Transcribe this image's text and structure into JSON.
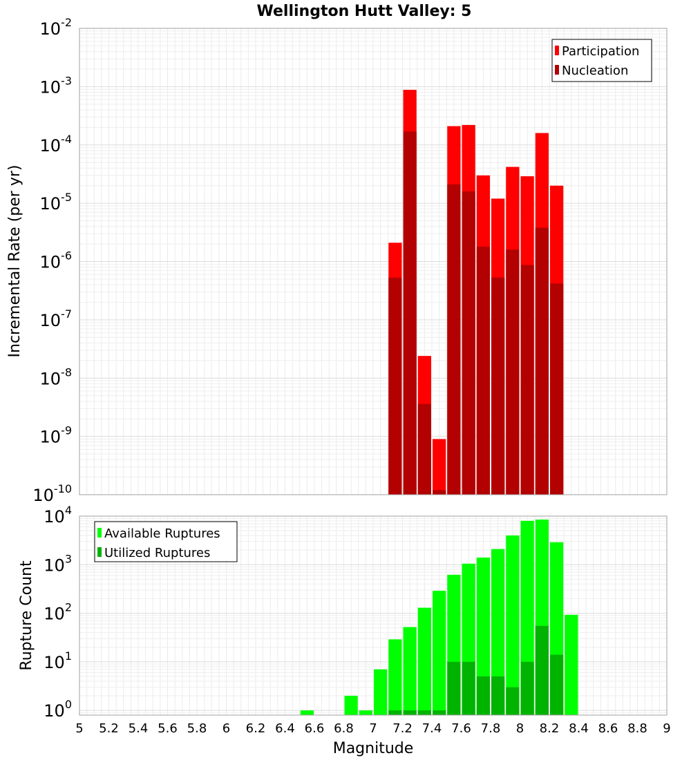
{
  "chart_data": {
    "title": "Wellington Hutt Valley: 5",
    "xlabel": "Magnitude",
    "x_ticks": [
      "5",
      "5.2",
      "5.4",
      "5.6",
      "5.8",
      "6",
      "6.2",
      "6.4",
      "6.6",
      "6.8",
      "7",
      "7.2",
      "7.4",
      "7.6",
      "7.8",
      "8",
      "8.2",
      "8.4",
      "8.6",
      "8.8",
      "9"
    ],
    "xlim": [
      5,
      9
    ],
    "panels": [
      {
        "type": "bar",
        "ylabel": "Incremental Rate (per yr)",
        "yscale": "log",
        "ylim": [
          1e-10,
          0.01
        ],
        "y_tick_exponents": [
          "-10",
          "-9",
          "-8",
          "-7",
          "-6",
          "-5",
          "-4",
          "-3",
          "-2"
        ],
        "legend_position": "top-right",
        "grid": true,
        "series": [
          {
            "name": "Participation",
            "color": "#ff0000",
            "x": [
              7.15,
              7.25,
              7.35,
              7.45,
              7.55,
              7.65,
              7.75,
              7.85,
              7.95,
              8.05,
              8.15,
              8.25
            ],
            "values": [
              2.1e-06,
              0.00088,
              2.4e-08,
              9e-10,
              0.00021,
              0.00022,
              3e-05,
              1.2e-05,
              4.2e-05,
              2.9e-05,
              0.00016,
              2e-05
            ]
          },
          {
            "name": "Nucleation",
            "color": "#b30000",
            "x": [
              7.15,
              7.25,
              7.35,
              7.45,
              7.55,
              7.65,
              7.75,
              7.85,
              7.95,
              8.05,
              8.15,
              8.25
            ],
            "values": [
              5.3e-07,
              0.00017,
              3.6e-09,
              1.2e-10,
              2.1e-05,
              1.6e-05,
              1.8e-06,
              5.3e-07,
              1.6e-06,
              8.7e-07,
              3.8e-06,
              4.2e-07
            ]
          }
        ]
      },
      {
        "type": "bar",
        "ylabel": "Rupture Count",
        "yscale": "log",
        "ylim": [
          0.8,
          10000
        ],
        "y_tick_exponents": [
          "0",
          "1",
          "2",
          "3",
          "4"
        ],
        "legend_position": "top-left",
        "grid": true,
        "series": [
          {
            "name": "Available Ruptures",
            "color": "#00ff00",
            "x": [
              6.55,
              6.85,
              6.95,
              7.05,
              7.15,
              7.25,
              7.35,
              7.45,
              7.55,
              7.65,
              7.75,
              7.85,
              7.95,
              8.05,
              8.15,
              8.25,
              8.35
            ],
            "values": [
              1,
              2,
              1,
              7,
              29,
              52,
              130,
              290,
              620,
              1050,
              1400,
              2100,
              4000,
              8000,
              8500,
              2900,
              93
            ]
          },
          {
            "name": "Utilized Ruptures",
            "color": "#00b300",
            "x": [
              7.15,
              7.25,
              7.35,
              7.45,
              7.55,
              7.65,
              7.75,
              7.85,
              7.95,
              8.05,
              8.15,
              8.25
            ],
            "values": [
              1,
              1,
              1,
              1,
              10,
              10,
              5,
              5,
              3,
              10,
              55,
              14
            ]
          }
        ]
      }
    ]
  }
}
